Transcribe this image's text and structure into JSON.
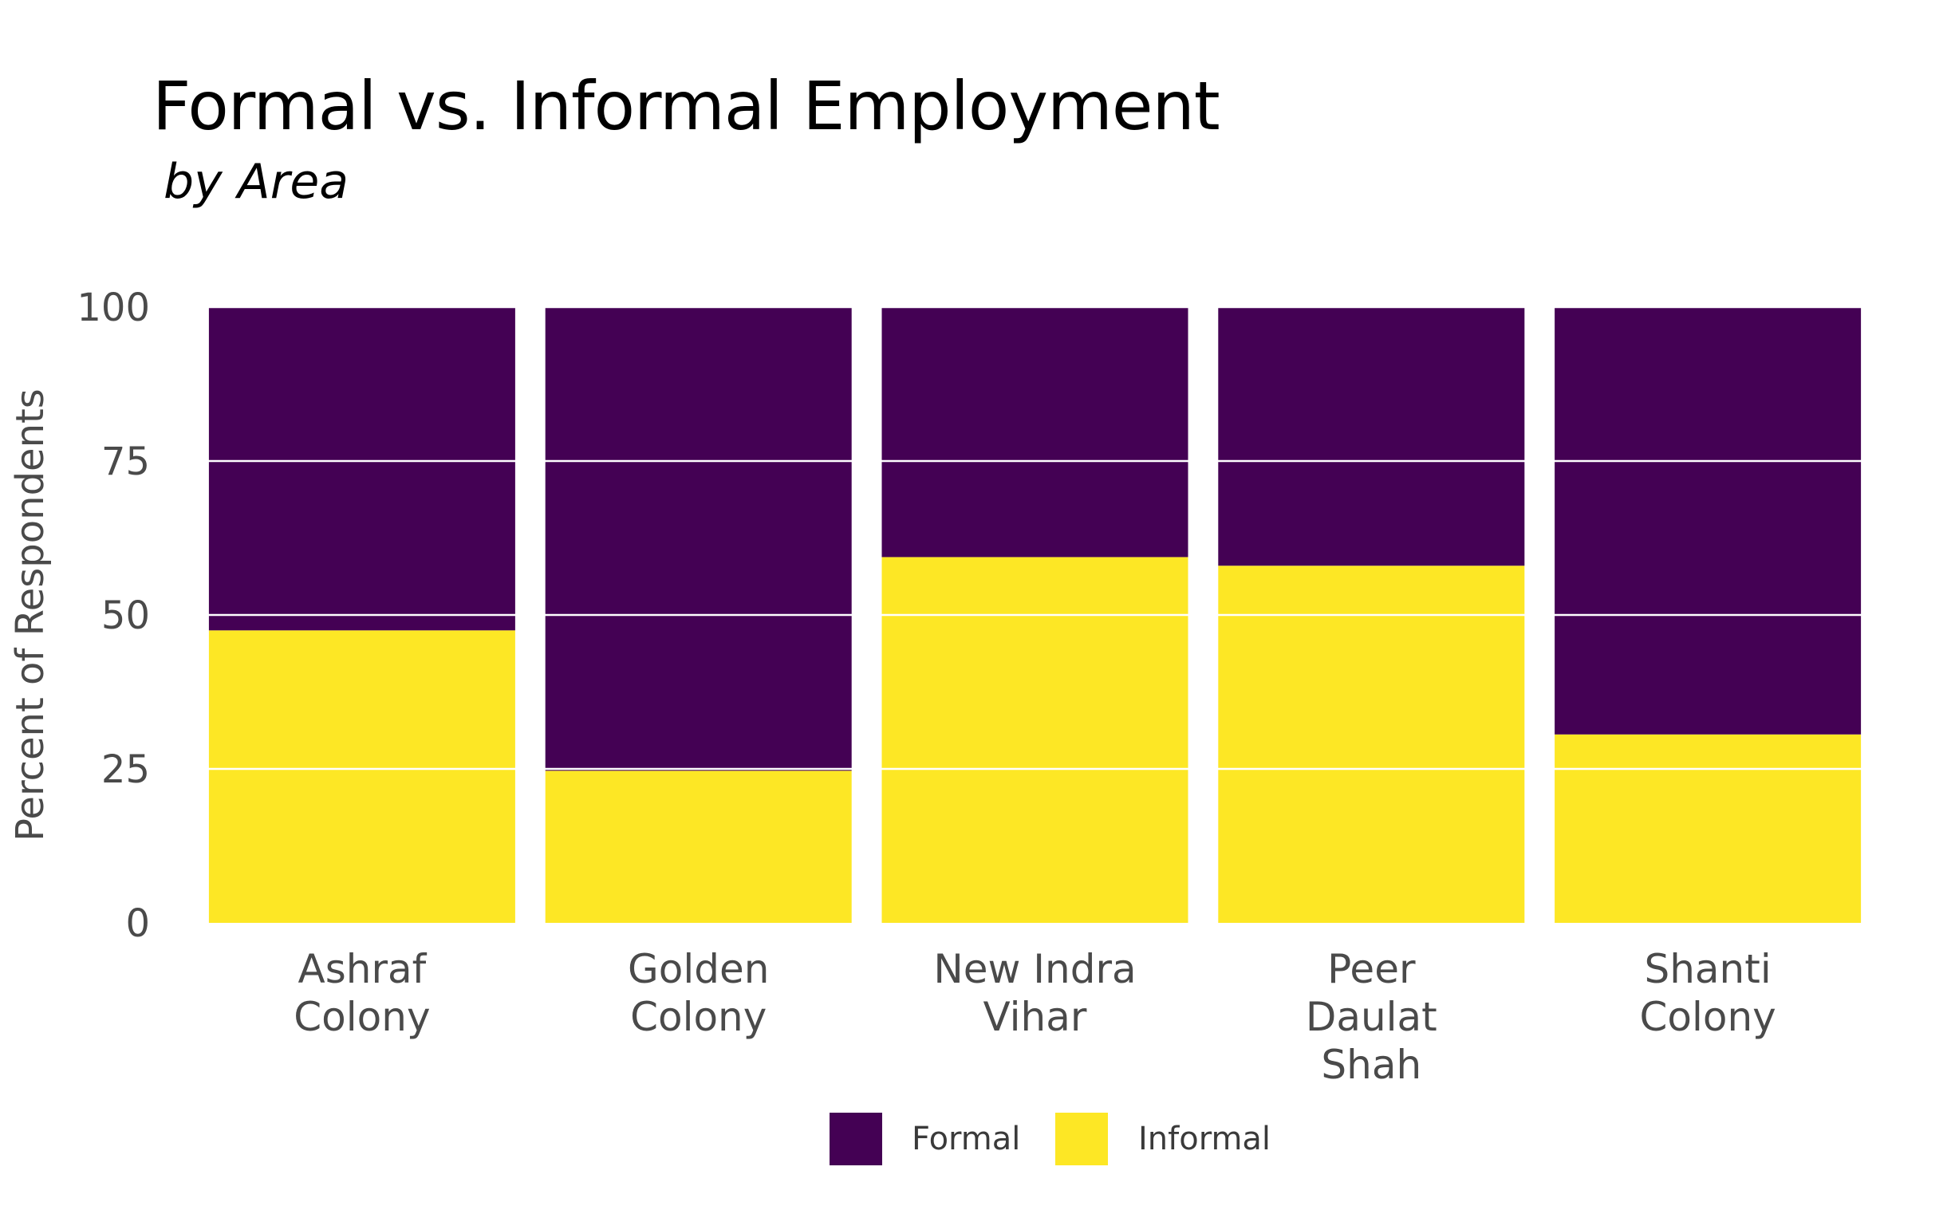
{
  "chart_data": {
    "type": "bar",
    "stacked": true,
    "title": "Formal vs. Informal Employment",
    "subtitle": "by Area",
    "xlabel": "",
    "ylabel": "Percent of Respondents",
    "ylim": [
      0,
      100
    ],
    "yticks": [
      "0",
      "25",
      "50",
      "75",
      "100"
    ],
    "grid": true,
    "legend_position": "bottom",
    "categories": [
      [
        "Ashraf",
        "Colony"
      ],
      [
        "Golden",
        "Colony"
      ],
      [
        "New Indra",
        "Vihar"
      ],
      [
        "Peer",
        "Daulat",
        "Shah"
      ],
      [
        "Shanti",
        "Colony"
      ]
    ],
    "series": [
      {
        "name": "Formal",
        "color": "#440154",
        "values": [
          52.5,
          75.3,
          40.6,
          42.0,
          69.4
        ]
      },
      {
        "name": "Informal",
        "color": "#FDE725",
        "values": [
          47.5,
          24.7,
          59.4,
          58.0,
          30.6
        ]
      }
    ]
  }
}
